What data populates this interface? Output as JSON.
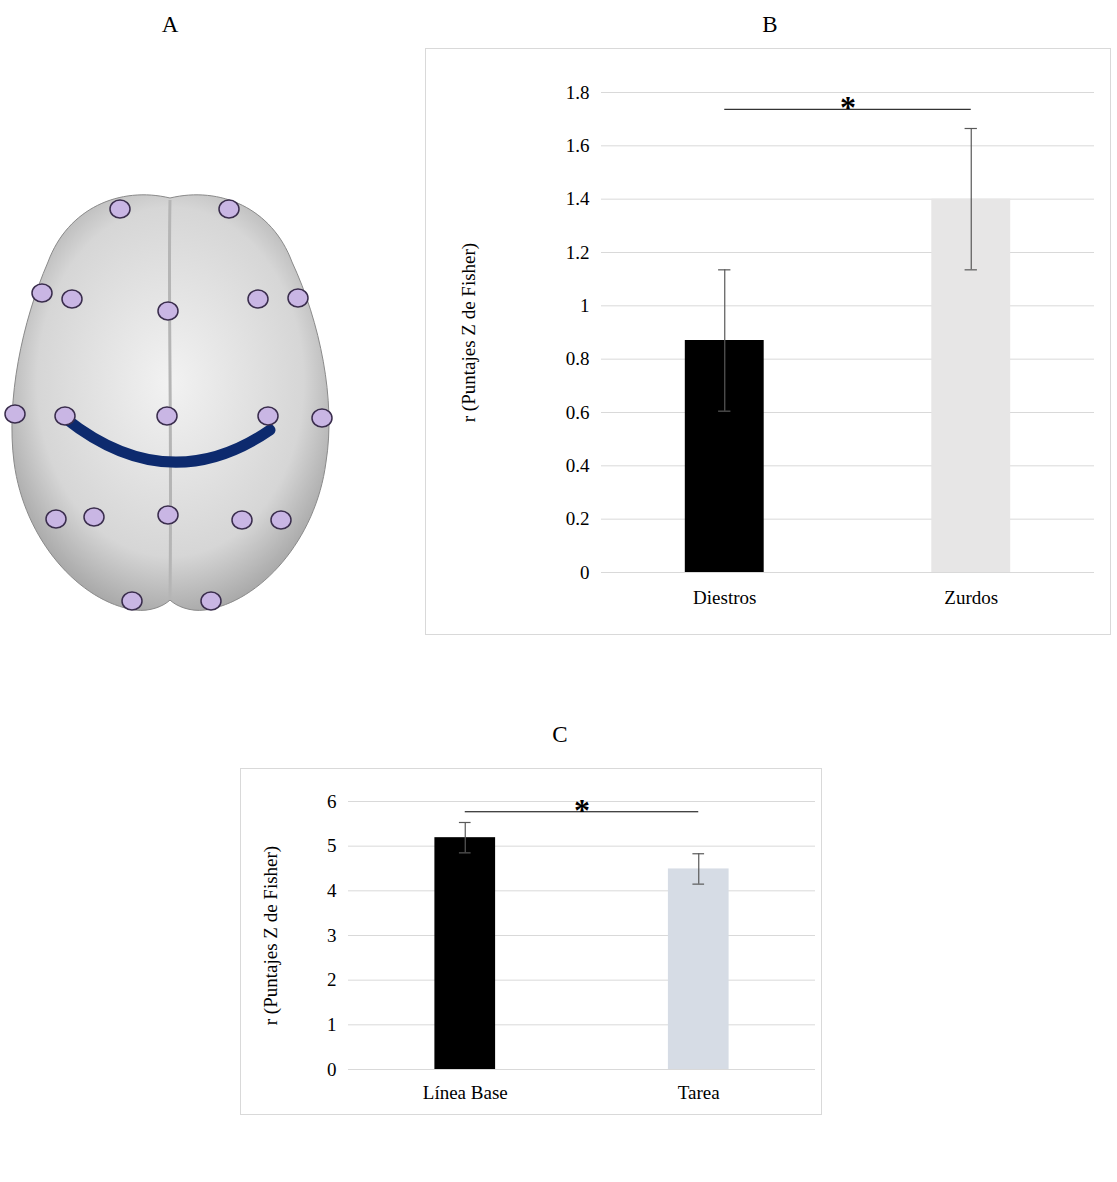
{
  "diagram": {
    "title": "A"
  },
  "chart_data": [
    {
      "type": "bar",
      "title": "B",
      "categories": [
        "Diestros",
        "Zurdos"
      ],
      "values": [
        0.87,
        1.4
      ],
      "errors": [
        0.265,
        0.265
      ],
      "colors": [
        "#000000",
        "#e7e6e6"
      ],
      "ylabel": "r (Puntajes Z de Fisher)",
      "ylim": [
        0,
        1.8
      ],
      "yticks": [
        0,
        0.2,
        0.4,
        0.6,
        0.8,
        1,
        1.2,
        1.4,
        1.6,
        1.8
      ],
      "grid": true,
      "annotations": [
        {
          "text": "*",
          "between": [
            "Diestros",
            "Zurdos"
          ]
        }
      ]
    },
    {
      "type": "bar",
      "title": "C",
      "categories": [
        "Línea Base",
        "Tarea"
      ],
      "values": [
        5.19,
        4.49
      ],
      "errors": [
        0.34,
        0.34
      ],
      "colors": [
        "#000000",
        "#d6dce5"
      ],
      "ylabel": "r (Puntajes Z de Fisher)",
      "ylim": [
        0,
        6
      ],
      "yticks": [
        0,
        1,
        2,
        3,
        4,
        5,
        6
      ],
      "grid": true,
      "annotations": [
        {
          "text": "*",
          "between": [
            "Línea Base",
            "Tarea"
          ]
        }
      ]
    }
  ]
}
